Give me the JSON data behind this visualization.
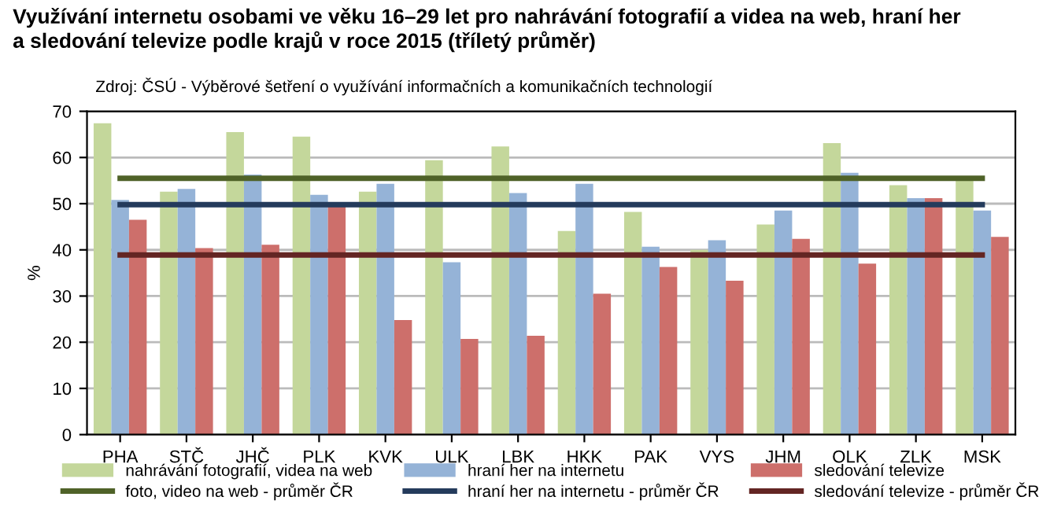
{
  "chart_data": {
    "type": "bar",
    "title": "Využívání internetu osobami ve věku 16–29 let pro nahrávání fotografií a videa na web, hraní her\na sledování televize podle krajů v roce 2015 (tříletý průměr)",
    "annotations": [
      "Zdroj: ČSÚ - Výběrové šetření o využívání informačních a komunikačních technologií"
    ],
    "ylabel": "%",
    "categories": [
      "PHA",
      "STČ",
      "JHČ",
      "PLK",
      "KVK",
      "ULK",
      "LBK",
      "HKK",
      "PAK",
      "VYS",
      "JHM",
      "OLK",
      "ZLK",
      "MSK"
    ],
    "series": [
      {
        "name": "nahrávání fotografií, videa na web",
        "color": "#c4d79b",
        "values": [
          67.4,
          52.6,
          65.5,
          64.5,
          52.6,
          59.4,
          62.4,
          44.1,
          48.2,
          40.0,
          45.5,
          63.1,
          54.0,
          55.8
        ]
      },
      {
        "name": "hraní her na internetu",
        "color": "#95b3d7",
        "values": [
          50.8,
          53.2,
          56.3,
          51.9,
          54.3,
          37.3,
          52.3,
          54.3,
          40.7,
          42.1,
          48.5,
          56.7,
          51.2,
          48.5
        ]
      },
      {
        "name": "sledování televize",
        "color": "#cd6f6b",
        "values": [
          46.5,
          40.4,
          41.1,
          49.5,
          24.8,
          20.7,
          21.4,
          30.5,
          36.3,
          33.3,
          42.4,
          37.0,
          51.2,
          42.8
        ]
      },
      {
        "name": "foto, video na web - průměr ČR",
        "type": "line",
        "color": "#4f6228",
        "values": [
          55.5,
          55.5,
          55.5,
          55.5,
          55.5,
          55.5,
          55.5,
          55.5,
          55.5,
          55.5,
          55.5,
          55.5,
          55.5,
          55.5
        ]
      },
      {
        "name": "hraní her na internetu - průměr ČR",
        "type": "line",
        "color": "#243b5c",
        "values": [
          49.8,
          49.8,
          49.8,
          49.8,
          49.8,
          49.8,
          49.8,
          49.8,
          49.8,
          49.8,
          49.8,
          49.8,
          49.8,
          49.8
        ]
      },
      {
        "name": "sledování televize - průměr ČR",
        "type": "line",
        "color": "#632523",
        "values": [
          38.9,
          38.9,
          38.9,
          38.9,
          38.9,
          38.9,
          38.9,
          38.9,
          38.9,
          38.9,
          38.9,
          38.9,
          38.9,
          38.9
        ]
      }
    ],
    "ylim": [
      0,
      70
    ],
    "yticks": [
      0,
      10,
      20,
      30,
      40,
      50,
      60,
      70
    ],
    "grid": "y",
    "legend": "bottom"
  }
}
